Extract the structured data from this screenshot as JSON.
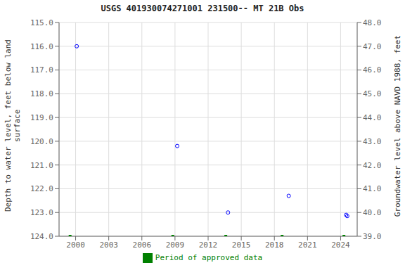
{
  "chart_data": {
    "type": "scatter",
    "title": "USGS 401930074271001 231500-- MT 21B Obs",
    "ylabel": "Depth to water level, feet below land\nsurface",
    "y2label": "Groundwater level above NAVD 1988, feet",
    "xlim": [
      1998.5,
      2025.5
    ],
    "xticks": [
      2000,
      2003,
      2006,
      2009,
      2012,
      2015,
      2018,
      2021,
      2024
    ],
    "ylim": [
      124.0,
      115.0
    ],
    "yticks": [
      {
        "value": 115.0,
        "label": "115.0"
      },
      {
        "value": 116.0,
        "label": "116.0"
      },
      {
        "value": 117.0,
        "label": "117.0"
      },
      {
        "value": 118.0,
        "label": "118.0"
      },
      {
        "value": 119.0,
        "label": "119.0"
      },
      {
        "value": 120.0,
        "label": "120.0"
      },
      {
        "value": 121.0,
        "label": "121.0"
      },
      {
        "value": 122.0,
        "label": "122.0"
      },
      {
        "value": 123.0,
        "label": "123.0"
      },
      {
        "value": 124.0,
        "label": "124.0"
      }
    ],
    "y2lim": [
      39.0,
      48.0
    ],
    "y2ticks": [
      {
        "value": 39.0,
        "label": "39.0"
      },
      {
        "value": 40.0,
        "label": "40.0"
      },
      {
        "value": 41.0,
        "label": "41.0"
      },
      {
        "value": 42.0,
        "label": "42.0"
      },
      {
        "value": 43.0,
        "label": "43.0"
      },
      {
        "value": 44.0,
        "label": "44.0"
      },
      {
        "value": 45.0,
        "label": "45.0"
      },
      {
        "value": 46.0,
        "label": "46.0"
      },
      {
        "value": 47.0,
        "label": "47.0"
      },
      {
        "value": 48.0,
        "label": "48.0"
      }
    ],
    "grid": true,
    "legend": "bottom",
    "series": [
      {
        "color": "blue",
        "marker": "circle",
        "x": [
          2000.1,
          2009.2,
          2013.8,
          2019.3,
          2024.5,
          2024.6
        ],
        "values": [
          116.0,
          120.2,
          123.0,
          122.3,
          123.1,
          123.15
        ]
      },
      {
        "name": "Period of approved data",
        "color": "#008000",
        "marker": "square",
        "x": [
          1999.5,
          2008.8,
          2013.6,
          2018.7,
          2024.3
        ],
        "values": [
          124.0,
          124.0,
          124.0,
          124.0,
          124.0
        ]
      }
    ]
  }
}
